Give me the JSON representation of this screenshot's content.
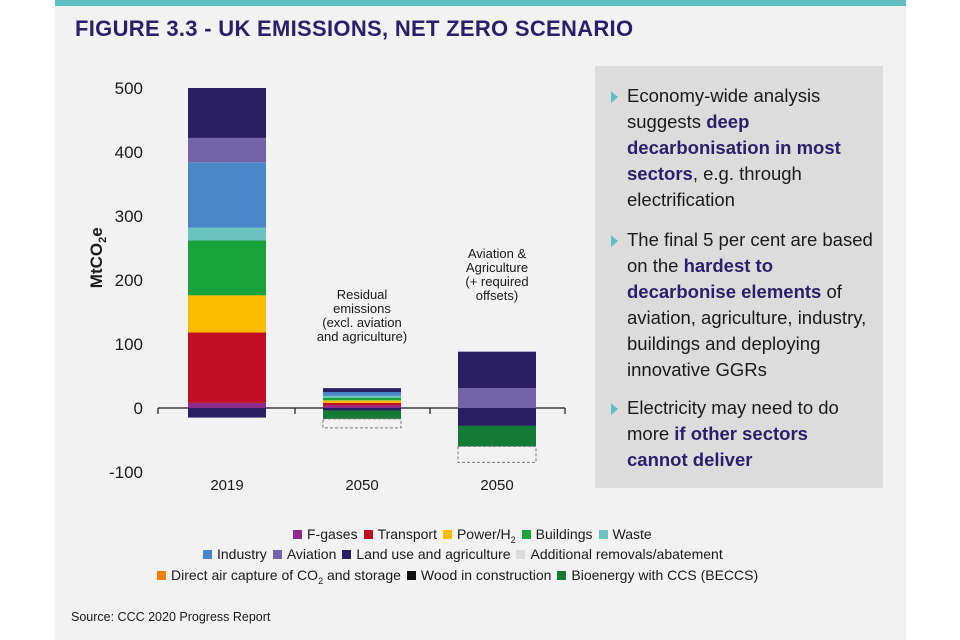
{
  "title": "FIGURE 3.3 - UK EMISSIONS, NET ZERO SCENARIO",
  "colors": {
    "accent_bar": "#5dbfc0",
    "title": "#2b1f6b",
    "F-gases": "#8e2b8a",
    "Transport": "#c00f22",
    "Power/H2": "#fbbc00",
    "Buildings": "#18a43b",
    "Waste": "#6ac3c1",
    "Industry": "#4a86c8",
    "Aviation": "#7264a6",
    "Land use and agriculture": "#2a1f63",
    "Additional removals/abatement": "#dcdcdc",
    "Direct air capture of CO2 and storage": "#ef7d00",
    "Wood in construction": "#111111",
    "Bioenergy with CCS (BECCS)": "#147a36"
  },
  "chart_data": {
    "type": "bar",
    "stacked": true,
    "ylabel_main": "MtCO",
    "ylabel_sub": "2",
    "ylabel_tail": "e",
    "ylim": [
      -100,
      500
    ],
    "yticks": [
      -100,
      0,
      100,
      200,
      300,
      400,
      500
    ],
    "categories": [
      "2019",
      "2050",
      "2050"
    ],
    "series": [
      {
        "name": "F-gases",
        "values": [
          8,
          4,
          0
        ]
      },
      {
        "name": "Transport",
        "values": [
          110,
          4,
          0
        ]
      },
      {
        "name": "Power/H₂",
        "values": [
          58,
          4,
          0
        ]
      },
      {
        "name": "Buildings",
        "values": [
          86,
          4,
          0
        ]
      },
      {
        "name": "Waste",
        "values": [
          20,
          3,
          0
        ]
      },
      {
        "name": "Industry",
        "values": [
          102,
          6,
          0
        ]
      },
      {
        "name": "Aviation",
        "values": [
          38,
          0,
          31
        ]
      },
      {
        "name": "Land use and agriculture",
        "values": [
          78,
          6,
          57
        ]
      },
      {
        "name": "Land use and agriculture",
        "values": [
          -15,
          -4,
          -28
        ]
      },
      {
        "name": "Bioenergy with CCS (BECCS)",
        "values": [
          0,
          -13,
          -32
        ]
      },
      {
        "name": "Additional removals/abatement",
        "values": [
          0,
          -14,
          -25
        ]
      }
    ],
    "annotations": [
      {
        "lines": [
          "Residual",
          "emissions",
          "(excl. aviation",
          "and agriculture)"
        ],
        "category_index": 1
      },
      {
        "lines": [
          "Aviation &",
          "Agriculture",
          "(+ required",
          "offsets)"
        ],
        "category_index": 2
      }
    ]
  },
  "textbox": {
    "bullets": [
      [
        {
          "text": "Economy-wide analysis suggests ",
          "bold": false
        },
        {
          "text": "deep decarbonisation in most sectors",
          "bold": true
        },
        {
          "text": ", e.g. through electrification",
          "bold": false
        }
      ],
      [
        {
          "text": "The final 5 per cent are based on the ",
          "bold": false
        },
        {
          "text": "hardest to decarbonise elements",
          "bold": true
        },
        {
          "text": " of aviation, agriculture, industry, buildings and deploying innovative GGRs",
          "bold": false
        }
      ],
      [
        {
          "text": "Electricity may need to do more ",
          "bold": false
        },
        {
          "text": "if other sectors cannot deliver",
          "bold": true
        }
      ]
    ]
  },
  "legend": {
    "rows": [
      [
        {
          "label": "F-gases",
          "color": "#8e2b8a"
        },
        {
          "label": "Transport",
          "color": "#c00f22"
        },
        {
          "label": "Power/H",
          "sub": "2",
          "color": "#fbbc00"
        },
        {
          "label": "Buildings",
          "color": "#18a43b"
        },
        {
          "label": "Waste",
          "color": "#6ac3c1"
        }
      ],
      [
        {
          "label": "Industry",
          "color": "#4a86c8"
        },
        {
          "label": "Aviation",
          "color": "#7264a6"
        },
        {
          "label": "Land use and agriculture",
          "color": "#2a1f63"
        },
        {
          "label": "Additional removals/abatement",
          "color": "#dcdcdc"
        }
      ],
      [
        {
          "label": "Direct air capture of CO",
          "sub": "2",
          "tail": " and storage",
          "color": "#ef7d00"
        },
        {
          "label": "Wood in construction",
          "color": "#111111"
        },
        {
          "label": "Bioenergy with CCS (BECCS)",
          "color": "#147a36"
        }
      ]
    ]
  },
  "source": "Source: CCC 2020 Progress Report"
}
